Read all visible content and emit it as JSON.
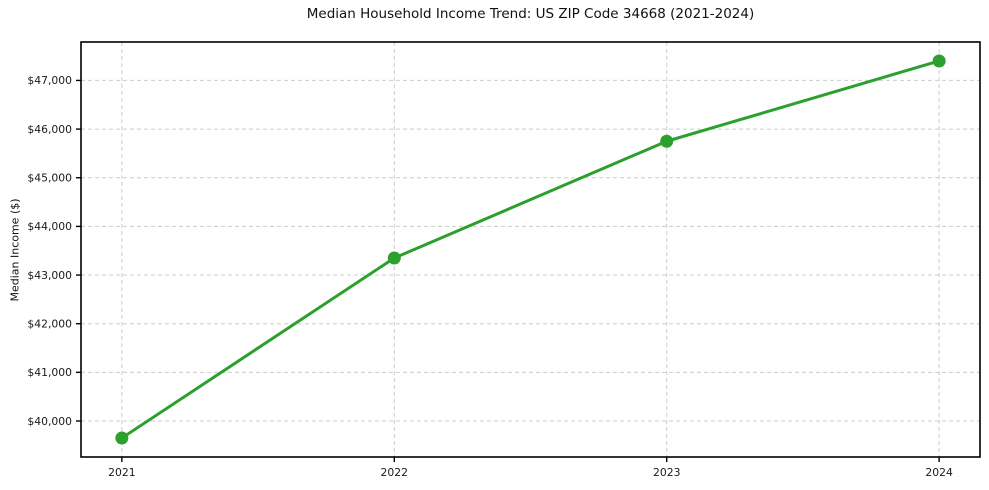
{
  "chart_data": {
    "type": "line",
    "title": "Median Household Income Trend: US ZIP Code 34668 (2021-2024)",
    "xlabel": "",
    "ylabel": "Median Income ($)",
    "series": [
      {
        "name": "Median Household Income",
        "x": [
          2021,
          2022,
          2023,
          2024
        ],
        "values": [
          39650,
          43350,
          45750,
          47400
        ]
      }
    ],
    "x_ticks": [
      2021,
      2022,
      2023,
      2024
    ],
    "x_tick_labels": [
      "2021",
      "2022",
      "2023",
      "2024"
    ],
    "y_ticks": [
      40000,
      41000,
      42000,
      43000,
      44000,
      45000,
      46000,
      47000
    ],
    "y_tick_labels": [
      "$40,000",
      "$41,000",
      "$42,000",
      "$43,000",
      "$44,000",
      "$45,000",
      "$46,000",
      "$47,000"
    ],
    "xlim": [
      2020.85,
      2024.15
    ],
    "ylim": [
      39260,
      47790
    ],
    "grid": "dashed, both axes",
    "legend": "none",
    "marker": "circle",
    "line_color": "#2ca02c",
    "grid_color": "#cccccc",
    "axis_color": "#000000",
    "text_color": "#1a1a1a",
    "background_color": "#ffffff",
    "line_width": 3,
    "marker_radius": 6.5
  }
}
